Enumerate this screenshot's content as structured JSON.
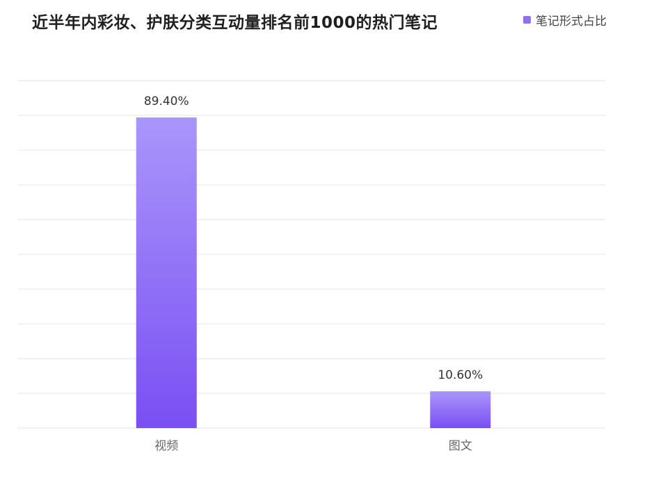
{
  "chart_data": {
    "type": "bar",
    "title": "近半年内彩妆、护肤分类互动量排名前1000的热门笔记",
    "categories": [
      "视频",
      "图文"
    ],
    "series": [
      {
        "name": "笔记形式占比",
        "values": [
          89.4,
          10.6
        ],
        "labels": [
          "89.40%",
          "10.60%"
        ]
      }
    ],
    "ylim": [
      0,
      100
    ],
    "grid": true,
    "legend": "top-right",
    "colors": {
      "bar_top": "#a996fa",
      "bar_bottom": "#7a4ff3",
      "grid": "#eeeeee",
      "legend_swatch": "#8f6ff5"
    }
  }
}
